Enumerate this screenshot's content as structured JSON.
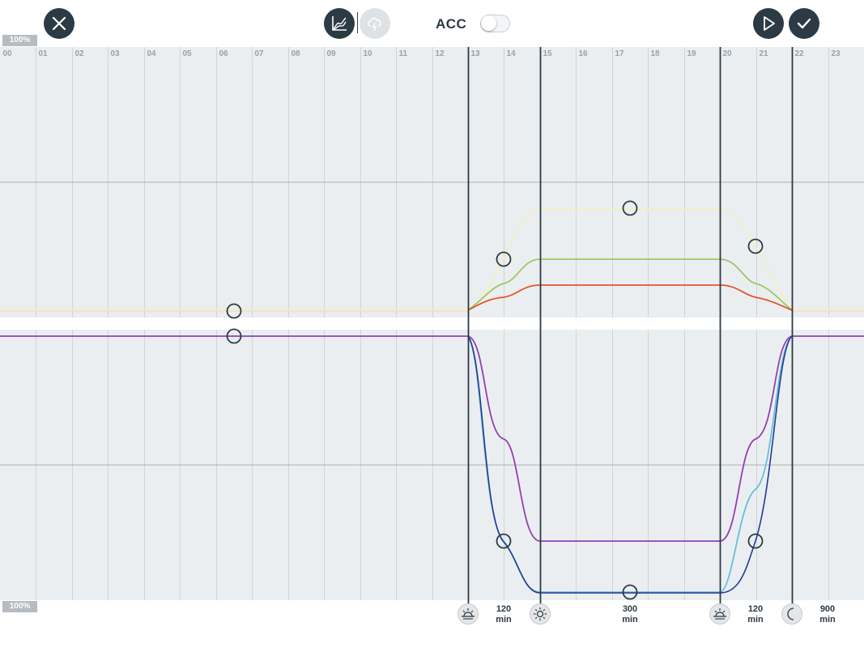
{
  "toolbar": {
    "acc_label": "ACC",
    "acc_enabled": false,
    "icons": {
      "close": "close-icon",
      "curve_mode": "curve-chart-icon",
      "weather_mode": "cloud-lightning-icon",
      "play": "play-icon",
      "confirm": "checkmark-icon"
    }
  },
  "chart": {
    "upper_max_label": "100%",
    "lower_max_label": "100%",
    "hours": [
      "00",
      "01",
      "02",
      "03",
      "04",
      "05",
      "06",
      "07",
      "08",
      "09",
      "10",
      "11",
      "12",
      "13",
      "14",
      "15",
      "16",
      "17",
      "18",
      "19",
      "20",
      "21",
      "22",
      "23"
    ],
    "phases": [
      {
        "name": "sunrise",
        "icon": "sunrise-icon",
        "start_hour": 13
      },
      {
        "name": "day",
        "icon": "sun-icon",
        "start_hour": 15
      },
      {
        "name": "sunset",
        "icon": "sunset-icon",
        "start_hour": 20
      },
      {
        "name": "night",
        "icon": "moon-icon",
        "start_hour": 22
      }
    ],
    "durations": [
      {
        "value": "120",
        "unit": "min"
      },
      {
        "value": "300",
        "unit": "min"
      },
      {
        "value": "120",
        "unit": "min"
      },
      {
        "value": "900",
        "unit": "min"
      }
    ],
    "colors": {
      "grid_bg": "#ebeef0",
      "grid_line": "#d0d4d7",
      "phase_line": "#2c3a43",
      "white_channel": "#f2efc8",
      "green_channel": "#9bc865",
      "red_channel": "#e0582a",
      "purple_channel": "#9240b3",
      "cyan_channel": "#68bfd8",
      "blue_channel": "#1f3b99"
    }
  }
}
